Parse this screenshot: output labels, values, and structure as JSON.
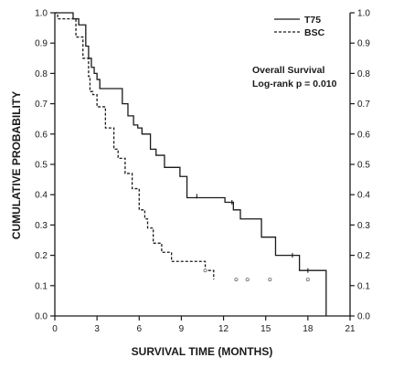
{
  "chart_data": {
    "type": "line",
    "xlabel": "SURVIVAL TIME (MONTHS)",
    "ylabel": "CUMULATIVE PROBABILITY",
    "xlim": [
      0,
      21
    ],
    "ylim": [
      0,
      1
    ],
    "x_ticks": [
      "0",
      "3",
      "6",
      "9",
      "12",
      "15",
      "18",
      "21"
    ],
    "y_ticks": [
      "0.0",
      "0.1",
      "0.2",
      "0.3",
      "0.4",
      "0.5",
      "0.6",
      "0.7",
      "0.8",
      "0.9",
      "1.0"
    ],
    "secondary_y_ticks": [
      "0.0",
      "0.1",
      "0.2",
      "0.3",
      "0.4",
      "0.5",
      "0.6",
      "0.7",
      "0.8",
      "0.9",
      "1.0"
    ],
    "grid": false,
    "legend_position": "top-right",
    "annotation": [
      "Overall Survival",
      "Log-rank p = 0.010"
    ],
    "series": [
      {
        "name": "T75",
        "style": "solid",
        "color": "#1a1a1a",
        "x": [
          0,
          1.1,
          1.3,
          1.7,
          2.2,
          2.4,
          2.6,
          2.8,
          3.0,
          3.2,
          3.8,
          4.8,
          5.2,
          5.6,
          5.9,
          6.2,
          6.8,
          7.2,
          7.8,
          8.4,
          8.9,
          9.4,
          12.1,
          12.7,
          13.2,
          13.9,
          14.7,
          15.7,
          16.7,
          17.4,
          19.3,
          19.3
        ],
        "y": [
          1.0,
          1.0,
          0.98,
          0.96,
          0.89,
          0.85,
          0.82,
          0.8,
          0.78,
          0.75,
          0.75,
          0.7,
          0.66,
          0.63,
          0.62,
          0.6,
          0.55,
          0.53,
          0.49,
          0.49,
          0.46,
          0.39,
          0.375,
          0.35,
          0.32,
          0.32,
          0.26,
          0.2,
          0.2,
          0.15,
          0.15,
          0.0
        ],
        "censored_x": [
          10.1,
          12.6,
          16.9,
          18.0
        ],
        "censored_y": [
          0.395,
          0.375,
          0.2,
          0.15
        ]
      },
      {
        "name": "BSC",
        "style": "dashed",
        "color": "#1a1a1a",
        "x": [
          0,
          0.2,
          1.1,
          1.5,
          2.0,
          2.4,
          2.5,
          2.7,
          3.0,
          3.6,
          4.2,
          4.5,
          5.0,
          5.5,
          6.0,
          6.4,
          6.6,
          7.0,
          7.6,
          8.3,
          9.0,
          10.7,
          11.3,
          11.3
        ],
        "y": [
          1.0,
          0.98,
          0.98,
          0.92,
          0.85,
          0.79,
          0.74,
          0.73,
          0.69,
          0.62,
          0.55,
          0.52,
          0.47,
          0.42,
          0.35,
          0.32,
          0.29,
          0.24,
          0.21,
          0.18,
          0.18,
          0.15,
          0.12,
          0.12
        ],
        "censored_x": [
          10.7,
          12.9,
          13.7,
          15.3,
          18.0
        ],
        "censored_y": [
          0.15,
          0.12,
          0.12,
          0.12,
          0.12
        ]
      }
    ]
  }
}
